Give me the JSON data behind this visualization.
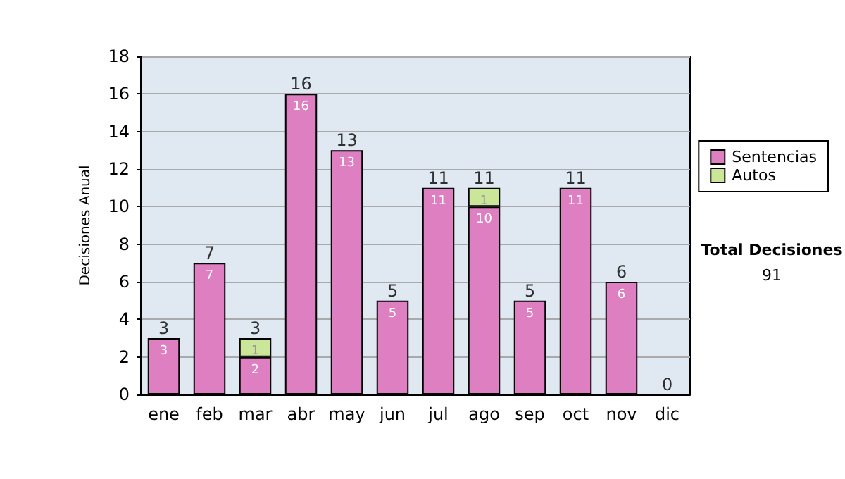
{
  "chart_data": {
    "type": "bar",
    "ylabel": "Decisiones Anual",
    "categories": [
      "ene",
      "feb",
      "mar",
      "abr",
      "may",
      "jun",
      "jul",
      "ago",
      "sep",
      "oct",
      "nov",
      "dic"
    ],
    "stacked": true,
    "series": [
      {
        "name": "Sentencias",
        "color": "#dd7fc0",
        "values": [
          3,
          7,
          2,
          16,
          13,
          5,
          11,
          10,
          5,
          11,
          6,
          0
        ],
        "value_labels": [
          "3",
          "7",
          "2",
          "16",
          "13",
          "5",
          "11",
          "10",
          "5",
          "11",
          "6",
          null
        ]
      },
      {
        "name": "Autos",
        "color": "#cce699",
        "values": [
          0,
          0,
          1,
          0,
          0,
          0,
          0,
          1,
          0,
          0,
          0,
          0
        ],
        "value_labels": [
          null,
          null,
          "1",
          null,
          null,
          null,
          null,
          "1",
          null,
          null,
          null,
          null
        ]
      }
    ],
    "totals": [
      "3",
      "7",
      "3",
      "16",
      "13",
      "5",
      "11",
      "11",
      "5",
      "11",
      "6",
      "0"
    ],
    "ylim": [
      0,
      18
    ],
    "yticks": [
      0,
      2,
      4,
      6,
      8,
      10,
      12,
      14,
      16,
      18
    ],
    "grid": "y",
    "legend": "right",
    "annotations": [
      "Total Decisiones",
      "91"
    ]
  }
}
